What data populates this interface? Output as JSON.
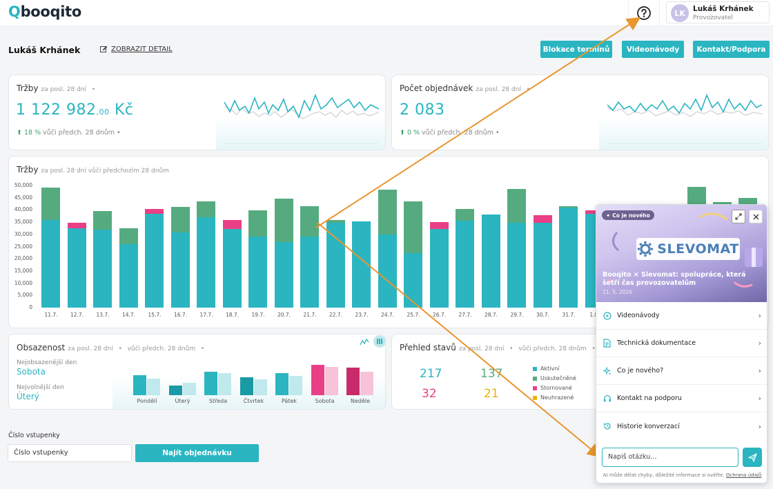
{
  "header": {
    "logo_q": "Q",
    "logo_text": "booqito",
    "user_initials": "LK",
    "user_name": "Lukáš Krhánek",
    "user_role": "Provozovatel"
  },
  "toolbar": {
    "name": "Lukáš Krhánek",
    "detail": "ZOBRAZIT DETAIL",
    "btn_block": "Blokace termínů",
    "btn_video": "Videonávody",
    "btn_contact": "Kontakt/Podpora"
  },
  "revenue": {
    "title": "Tržby",
    "period": "za posl. 28 dní",
    "value": "1 122 982",
    "decimals": ",00",
    "currency": "Kč",
    "trend_pct": "18 %",
    "trend_text": "vůči předch. 28 dnům"
  },
  "orders": {
    "title": "Počet objednávek",
    "period": "za posl. 28 dní",
    "value": "2 083",
    "trend_pct": "0 %",
    "trend_text": "vůči předch. 28 dnům"
  },
  "chart": {
    "title": "Tržby",
    "subtitle": "za posl. 28 dní vůči předchozím 28 dnům"
  },
  "chart_data": {
    "type": "bar",
    "stacked": true,
    "categories": [
      "11.7.",
      "12.7.",
      "13.7.",
      "14.7.",
      "15.7.",
      "16.7.",
      "17.7.",
      "18.7.",
      "19.7.",
      "20.7.",
      "21.7.",
      "22.7.",
      "23.7.",
      "24.7.",
      "25.7.",
      "26.7.",
      "27.7.",
      "28.7.",
      "29.7.",
      "30.7.",
      "31.7.",
      "1.8."
    ],
    "base": [
      36000,
      32500,
      31800,
      26000,
      38500,
      30800,
      37000,
      32200,
      29200,
      26800,
      29000,
      34800,
      35300,
      30000,
      22300,
      32200,
      35700,
      38200,
      34700,
      34700,
      41000,
      38400
    ],
    "extra": [
      13200,
      0,
      7700,
      6600,
      0,
      10500,
      6500,
      0,
      10500,
      17900,
      12600,
      1200,
      0,
      18200,
      21300,
      0,
      4700,
      0,
      14000,
      0,
      600,
      0
    ],
    "pink": [
      0,
      2200,
      0,
      0,
      1800,
      0,
      0,
      3700,
      0,
      0,
      0,
      0,
      0,
      0,
      0,
      2700,
      0,
      0,
      0,
      3200,
      0,
      1300
    ],
    "partial_tail_tops": [
      49500,
      43200,
      45000
    ],
    "yticks": [
      "0",
      "5,000",
      "10,000",
      "15,000",
      "20,000",
      "25,000",
      "30,000",
      "35,000",
      "40,000",
      "45,000",
      "50,000"
    ],
    "ylim": [
      0,
      50000
    ],
    "colors": {
      "base": "#2ab5c1",
      "extra": "#55ab7f",
      "pink": "#ea3f86"
    }
  },
  "occupancy": {
    "title": "Obsazenost",
    "period": "za posl. 28 dní",
    "compare": "vůči předch. 28 dnům",
    "max_label": "Nejobsazenější den",
    "max_value": "Sobota",
    "min_label": "Nejvolnější den",
    "min_value": "Úterý",
    "days": [
      "Pondělí",
      "Úterý",
      "Středa",
      "Čtvrtek",
      "Pátek",
      "Sobota",
      "Neděle"
    ],
    "current": [
      31,
      15,
      36,
      28,
      34,
      47,
      43
    ],
    "previous": [
      26,
      19,
      34,
      25,
      30,
      44,
      36
    ],
    "max_value_scale": 50
  },
  "states": {
    "title": "Přehled stavů",
    "period": "za posl. 28 dní",
    "compare": "vůči předch. 28 dnům",
    "n1": "217",
    "n2": "137",
    "n3": "32",
    "n4": "21",
    "legend": [
      "Aktivní",
      "Uskutečněné",
      "Stornované",
      "Neuhrazené"
    ],
    "colors": [
      "#2ab5c1",
      "#55ab7f",
      "#ea3f86",
      "#e8b500"
    ]
  },
  "finder": {
    "label": "Číslo vstupenky",
    "placeholder": "Číslo vstupenky",
    "button": "Najít objednávku"
  },
  "panel": {
    "badge": "Co je nového",
    "brand": "SLEVOMAT",
    "title": "Booqito × Slevomat: spolupráce, která šetří čas provozovatelům",
    "date": "11. 5. 2026",
    "items": [
      "Videonávody",
      "Technická dokumentace",
      "Co je nového?",
      "Kontakt na podporu",
      "Historie konverzací"
    ],
    "ask_placeholder": "Napiš otázku…",
    "disclaimer": "AI může dělat chyby, důležité informace si ověřte.",
    "privacy": "Ochrana údajů"
  }
}
